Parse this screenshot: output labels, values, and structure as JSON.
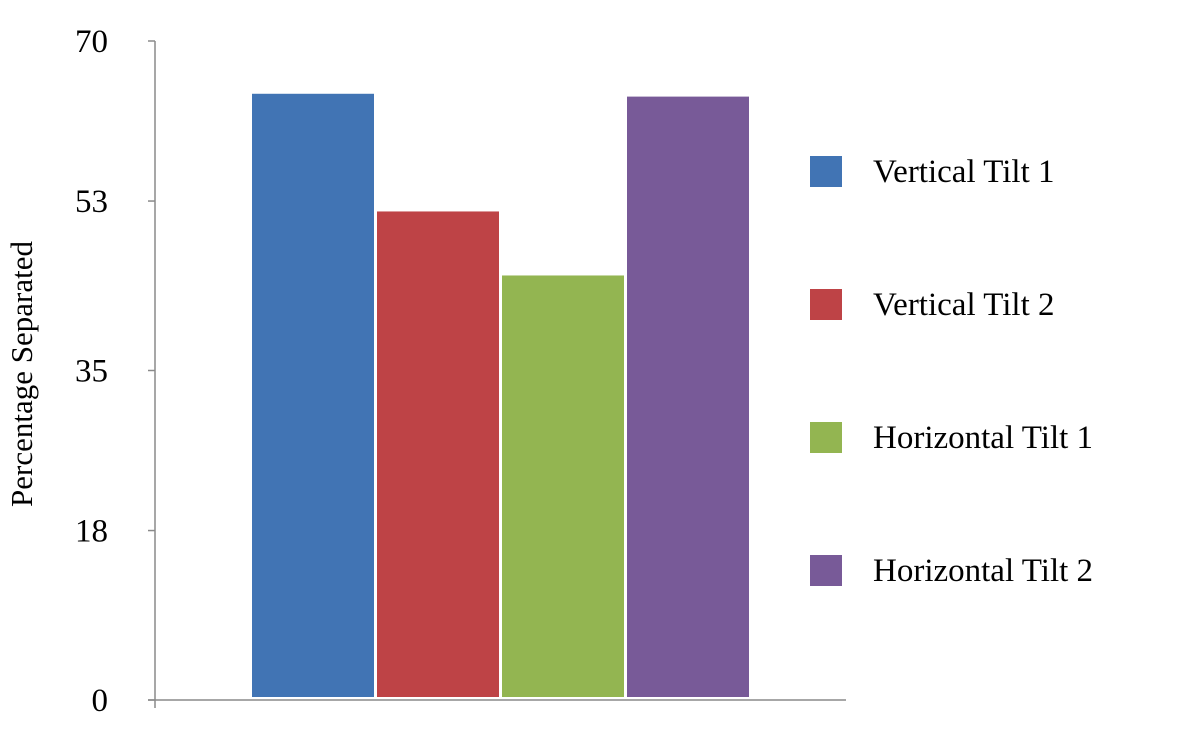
{
  "chart_data": {
    "type": "bar",
    "title": "",
    "xlabel": "",
    "ylabel": "Percentage Separated",
    "ylim": [
      0,
      70
    ],
    "yticks": [
      0,
      18,
      35,
      53,
      70
    ],
    "grid": false,
    "legend_position": "right",
    "categories": [
      ""
    ],
    "series": [
      {
        "name": "Vertical Tilt 1",
        "color": "#4174B4",
        "values": [
          64.5
        ]
      },
      {
        "name": "Vertical Tilt 2",
        "color": "#BE4346",
        "values": [
          52.0
        ]
      },
      {
        "name": "Horizontal Tilt 1",
        "color": "#93B551",
        "values": [
          45.2
        ]
      },
      {
        "name": "Horizontal Tilt 2",
        "color": "#785A98",
        "values": [
          64.2
        ]
      }
    ]
  }
}
